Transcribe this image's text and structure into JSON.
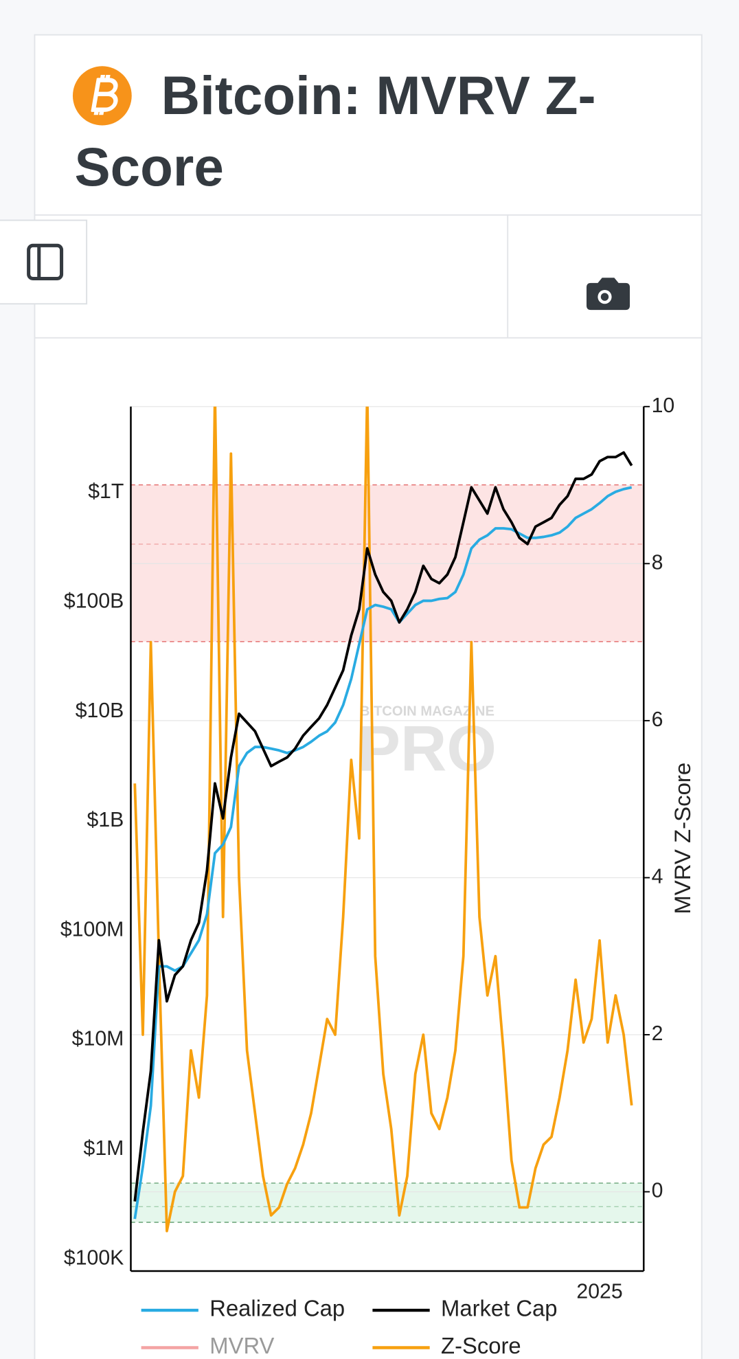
{
  "header": {
    "title": "Bitcoin: MVRV Z-Score"
  },
  "chart_data": {
    "type": "line",
    "categories": [
      null,
      null,
      null,
      null,
      null,
      null,
      null,
      null,
      null,
      null,
      null,
      null,
      null,
      null,
      null,
      null,
      null,
      null,
      null,
      null,
      null,
      null,
      null,
      null,
      null,
      null,
      null,
      null,
      null,
      null,
      null,
      null,
      null,
      null,
      null,
      null,
      null,
      null,
      null,
      null,
      null,
      null,
      null,
      null,
      null,
      null,
      null,
      null,
      null,
      null,
      null,
      null,
      null,
      null,
      null,
      null,
      null,
      null,
      "2025",
      null,
      null,
      null,
      null,
      null
    ],
    "yscale": "log",
    "ylim": [
      77400,
      6130000000000
    ],
    "yticks": [
      {
        "value": 100000,
        "label": "$100K"
      },
      {
        "value": 1000000,
        "label": "$1M"
      },
      {
        "value": 10000000,
        "label": "$10M"
      },
      {
        "value": 100000000,
        "label": "$100M"
      },
      {
        "value": 1000000000,
        "label": "$1B"
      },
      {
        "value": 10000000000,
        "label": "$10B"
      },
      {
        "value": 100000000000,
        "label": "$100B"
      },
      {
        "value": 1000000000000,
        "label": "$1T"
      }
    ],
    "y2label": "MVRV Z-Score",
    "y2lim": [
      -1.01,
      10
    ],
    "y2ticks": [
      0,
      2,
      4,
      6,
      8,
      10
    ],
    "grid": true,
    "watermark": {
      "top": "BITCOIN MAGAZINE",
      "main": "PRO"
    },
    "series": [
      {
        "name": "Realized Cap",
        "color": "#29abe2",
        "axis": "y",
        "values": [
          232000,
          697000,
          2510000,
          47100000,
          47100000,
          43000000,
          47100000,
          62000000,
          81600000,
          141000000,
          509000000,
          612000000,
          883000000,
          3180000000,
          4190000000,
          4760000000,
          4760000000,
          4590000000,
          4430000000,
          4190000000,
          4430000000,
          4760000000,
          5310000000,
          6040000000,
          6620000000,
          7960000000,
          11500000000,
          19900000000,
          41400000000,
          86100000000,
          94400000000,
          91000000000,
          86100000000,
          65400000000,
          78500000000,
          94400000000,
          103000000000,
          103000000000,
          107000000000,
          109000000000,
          124000000000,
          179000000000,
          310000000000,
          373000000000,
          408000000000,
          473000000000,
          473000000000,
          464000000000,
          424000000000,
          387000000000,
          387000000000,
          395000000000,
          408000000000,
          432000000000,
          490000000000,
          589000000000,
          645000000000,
          708000000000,
          804000000000,
          931000000000,
          1020000000000,
          1080000000000,
          1120000000000,
          null
        ]
      },
      {
        "name": "Market Cap",
        "color": "#000000",
        "axis": "y",
        "values": [
          335000,
          1450000,
          5220000,
          81600000,
          22600000,
          39200000,
          47100000,
          81600000,
          118000000,
          353000000,
          2210000000,
          1060000000,
          3820000000,
          9550000000,
          7960000000,
          6620000000,
          4590000000,
          3180000000,
          3490000000,
          3820000000,
          4590000000,
          6040000000,
          7260000000,
          8710000000,
          11500000000,
          16600000000,
          23900000000,
          49700000000,
          86100000000,
          310000000000,
          179000000000,
          124000000000,
          103000000000,
          65400000000,
          86100000000,
          124000000000,
          215000000000,
          163000000000,
          149000000000,
          179000000000,
          258000000000,
          537000000000,
          1120000000000,
          849000000000,
          645000000000,
          1120000000000,
          708000000000,
          537000000000,
          387000000000,
          340000000000,
          490000000000,
          537000000000,
          589000000000,
          775000000000,
          931000000000,
          1340000000000,
          1340000000000,
          1470000000000,
          1940000000000,
          2120000000000,
          2120000000000,
          2330000000000,
          1770000000000,
          null
        ]
      },
      {
        "name": "MVRV",
        "color": "#f4a3a3",
        "axis": "y2",
        "visible": false
      },
      {
        "name": "Z-Score",
        "color": "#f7a00f",
        "axis": "y2",
        "values": [
          5.2,
          2,
          7,
          3,
          -0.5,
          0,
          0.2,
          1.8,
          1.2,
          2.5,
          10.2,
          3.5,
          9.4,
          4,
          1.8,
          1,
          0.2,
          -0.3,
          -0.2,
          0.1,
          0.3,
          0.6,
          1,
          1.6,
          2.2,
          2,
          3.5,
          5.5,
          4.5,
          10.2,
          3,
          1.5,
          0.8,
          -0.3,
          0.2,
          1.5,
          2,
          1,
          0.8,
          1.2,
          1.8,
          3,
          7,
          3.5,
          2.5,
          3,
          1.8,
          0.4,
          -0.2,
          -0.2,
          0.3,
          0.6,
          0.7,
          1.2,
          1.8,
          2.7,
          1.9,
          2.2,
          3.2,
          1.9,
          2.5,
          2,
          1.1,
          null
        ]
      }
    ]
  }
}
